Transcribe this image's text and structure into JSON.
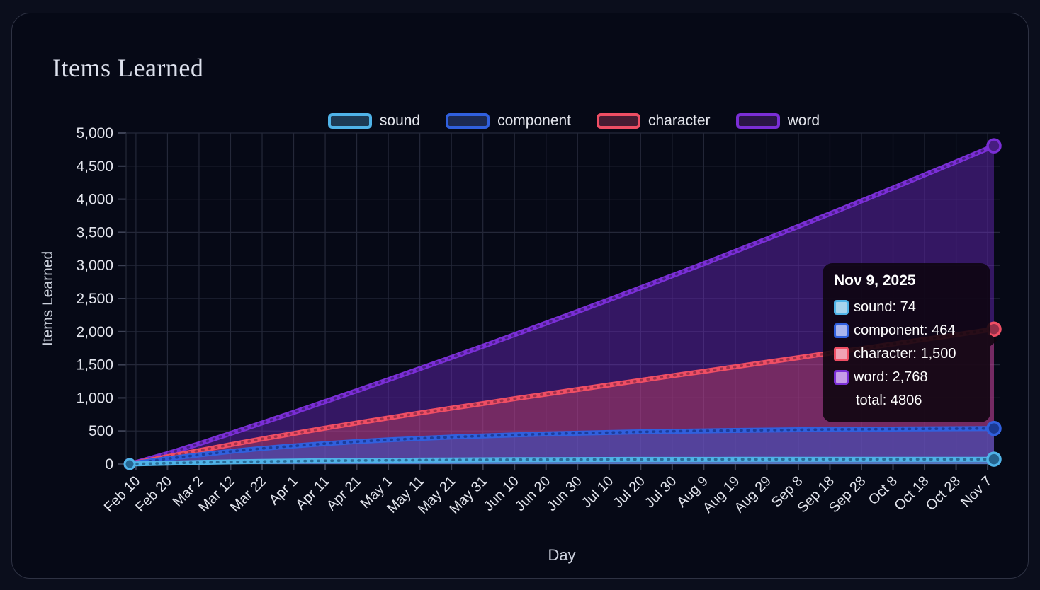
{
  "card": {
    "title": "Items Learned"
  },
  "legend": [
    {
      "label": "sound",
      "border": "#4FB3E8",
      "fill": "#1d3b55"
    },
    {
      "label": "component",
      "border": "#3060DE",
      "fill": "#1c2a52"
    },
    {
      "label": "character",
      "border": "#EF4E64",
      "fill": "#471c33"
    },
    {
      "label": "word",
      "border": "#7A2ED6",
      "fill": "#2a1646"
    }
  ],
  "tooltip": {
    "title": "Nov 9, 2025",
    "rows": [
      {
        "label": "sound",
        "value": "74",
        "swatch_fill": "#A7D4EE",
        "swatch_border": "#4FB3E8"
      },
      {
        "label": "component",
        "value": "464",
        "swatch_fill": "#A9B5EE",
        "swatch_border": "#3060DE"
      },
      {
        "label": "character",
        "value": "1,500",
        "swatch_fill": "#F0A2B5",
        "swatch_border": "#EF4E64"
      },
      {
        "label": "word",
        "value": "2,768",
        "swatch_fill": "#C69CE8",
        "swatch_border": "#7A2ED6"
      }
    ],
    "total_text": "total: 4806"
  },
  "chart_data": {
    "type": "area",
    "stacked": true,
    "title": "Items Learned",
    "xlabel": "Day",
    "ylabel": "Items Learned",
    "ylim": [
      0,
      5000
    ],
    "grid": true,
    "legend_position": "top",
    "y_tick_labels": [
      "0",
      "500",
      "1,000",
      "1,500",
      "2,000",
      "2,500",
      "3,000",
      "3,500",
      "4,000",
      "4,500",
      "5,000"
    ],
    "x_tick_labels": [
      "Feb 10",
      "Feb 20",
      "Mar 2",
      "Mar 12",
      "Mar 22",
      "Apr 1",
      "Apr 11",
      "Apr 21",
      "May 1",
      "May 11",
      "May 21",
      "May 31",
      "Jun 10",
      "Jun 20",
      "Jun 30",
      "Jul 10",
      "Jul 20",
      "Jul 30",
      "Aug 9",
      "Aug 19",
      "Aug 29",
      "Sep 8",
      "Sep 18",
      "Sep 28",
      "Oct 8",
      "Oct 18",
      "Oct 28",
      "Nov 7"
    ],
    "x_tick_days": [
      2,
      12,
      22,
      32,
      42,
      52,
      62,
      72,
      82,
      92,
      102,
      112,
      122,
      132,
      142,
      152,
      162,
      172,
      182,
      192,
      202,
      212,
      222,
      232,
      242,
      252,
      262,
      272
    ],
    "x_start_date": "Feb 8",
    "x_end_date": "Nov 9, 2025",
    "x_days": [
      0,
      2,
      12,
      22,
      32,
      42,
      52,
      62,
      72,
      82,
      92,
      102,
      112,
      122,
      132,
      142,
      152,
      162,
      172,
      182,
      192,
      202,
      212,
      222,
      232,
      242,
      252,
      262,
      272,
      274
    ],
    "x_total_days": 274,
    "series": [
      {
        "name": "sound",
        "color": "#4FB3E8",
        "marker_color": "#26648f",
        "fill_opacity": 0.45,
        "end_value": 74,
        "values": [
          0,
          3,
          14,
          24,
          33,
          40,
          45,
          50,
          54,
          57,
          60,
          62,
          64,
          66,
          67,
          68,
          69,
          70,
          71,
          71,
          72,
          72,
          72,
          73,
          73,
          73,
          73,
          73,
          73,
          74
        ]
      },
      {
        "name": "component",
        "color": "#3060DE",
        "marker_color": "#1b3a94",
        "fill_opacity": 0.46,
        "end_value": 464,
        "values": [
          0,
          12,
          67,
          115,
          158,
          196,
          229,
          259,
          285,
          308,
          328,
          346,
          361,
          375,
          388,
          398,
          408,
          416,
          424,
          430,
          436,
          441,
          446,
          450,
          453,
          456,
          459,
          461,
          464,
          464
        ]
      },
      {
        "name": "character",
        "color": "#EF4E64",
        "marker_color": "#97304a",
        "fill_opacity": 0.34,
        "end_value": 1500,
        "values": [
          0,
          3,
          30,
          64,
          102,
          144,
          188,
          234,
          282,
          332,
          383,
          436,
          490,
          546,
          602,
          660,
          718,
          778,
          838,
          899,
          962,
          1025,
          1089,
          1153,
          1218,
          1284,
          1351,
          1418,
          1486,
          1500
        ]
      },
      {
        "name": "word",
        "color": "#7A2ED6",
        "marker_color": "#471d80",
        "fill_opacity": 0.4,
        "end_value": 2768,
        "values": [
          0,
          5,
          47,
          104,
          170,
          242,
          319,
          401,
          487,
          577,
          670,
          766,
          865,
          967,
          1071,
          1178,
          1287,
          1398,
          1511,
          1626,
          1743,
          1862,
          1983,
          2105,
          2230,
          2355,
          2483,
          2612,
          2742,
          2768
        ]
      }
    ],
    "total_end_value": 4806
  },
  "colors": {
    "background": "#0b0e1c",
    "card_background": "#060916",
    "card_border": "#2e3243",
    "grid": "#242839",
    "tick_text": "#e2e4ec",
    "axis_label_text": "#ccd1dd",
    "title_text": "#dde1ed"
  }
}
